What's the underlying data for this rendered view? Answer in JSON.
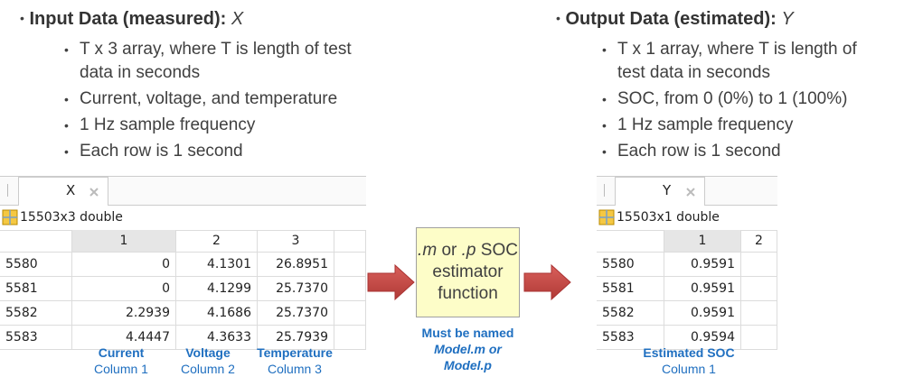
{
  "input": {
    "heading": "Input Data (measured):",
    "variable": "X",
    "bullets": [
      "T x 3 array, where T is length of test data in seconds",
      "Current, voltage, and temperature",
      "1 Hz sample frequency",
      "Each row is 1 second"
    ],
    "table": {
      "tab": "X",
      "summary": "15503x3 double",
      "columns": [
        "1",
        "2",
        "3"
      ],
      "rows": [
        [
          "5580",
          "0",
          "4.1301",
          "26.8951"
        ],
        [
          "5581",
          "0",
          "4.1299",
          "25.7370"
        ],
        [
          "5582",
          "2.2939",
          "4.1686",
          "25.7370"
        ],
        [
          "5583",
          "4.4447",
          "4.3633",
          "25.7939"
        ]
      ]
    },
    "captions": [
      {
        "name": "Current",
        "column": "Column 1"
      },
      {
        "name": "Voltage",
        "column": "Column 2"
      },
      {
        "name": "Temperature",
        "column": "Column 3"
      }
    ]
  },
  "output": {
    "heading": "Output Data (estimated):",
    "variable": "Y",
    "bullets": [
      "T x 1 array, where T is length of test data in seconds",
      "SOC, from 0 (0%) to 1 (100%)",
      "1 Hz sample frequency",
      "Each row is 1 second"
    ],
    "table": {
      "tab": "Y",
      "summary": "15503x1 double",
      "columns": [
        "1",
        "2"
      ],
      "rows": [
        [
          "5580",
          "0.9591"
        ],
        [
          "5581",
          "0.9591"
        ],
        [
          "5582",
          "0.9591"
        ],
        [
          "5583",
          "0.9594"
        ]
      ]
    },
    "captions": [
      {
        "name": "Estimated SOC",
        "column": "Column 1"
      }
    ]
  },
  "box": {
    "ext_m": ".m",
    "or": "or",
    "ext_p": ".p",
    "text": "SOC estimator function"
  },
  "note": [
    "Must be named",
    "Model.m or",
    "Model.p"
  ]
}
